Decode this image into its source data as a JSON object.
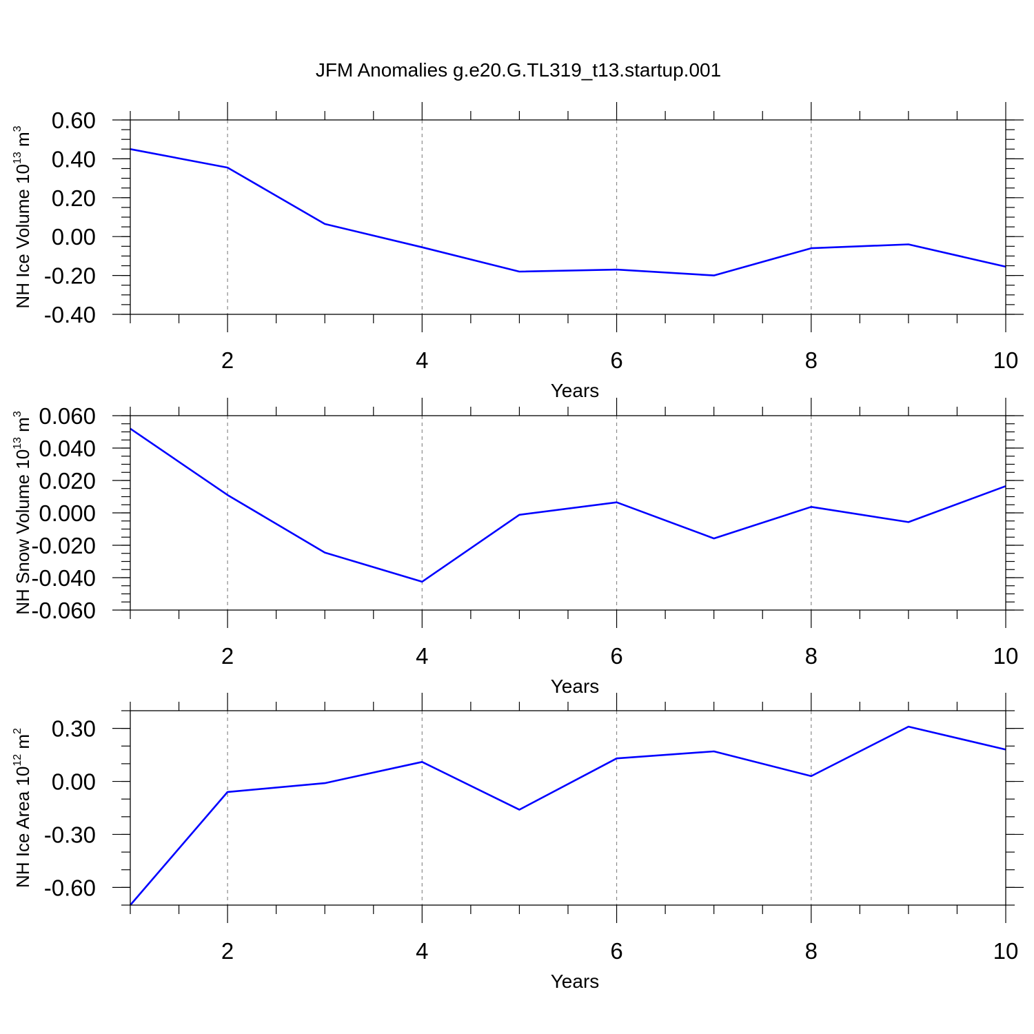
{
  "title": "JFM Anomalies g.e20.G.TL319_t13.startup.001",
  "colors": {
    "line": "#0000ff",
    "grid": "#8a8a8a",
    "axis": "#000000"
  },
  "chart_data": [
    {
      "type": "line",
      "ylabel": {
        "text": "NH Ice Volume 10",
        "sup": "13",
        "unit": " m",
        "unit_sup": "3"
      },
      "xlabel": "Years",
      "x": [
        1,
        2,
        3,
        4,
        5,
        6,
        7,
        8,
        9,
        10
      ],
      "values": [
        0.45,
        0.355,
        0.065,
        -0.055,
        -0.18,
        -0.17,
        -0.2,
        -0.06,
        -0.04,
        -0.155
      ],
      "xlim": [
        1,
        10
      ],
      "ylim": [
        -0.4,
        0.6
      ],
      "xticks": [
        2,
        4,
        6,
        8,
        10
      ],
      "xtick_labels": [
        "2",
        "4",
        "6",
        "8",
        "10"
      ],
      "yticks": [
        -0.4,
        -0.2,
        0.0,
        0.2,
        0.4,
        0.6
      ],
      "ytick_labels": [
        "-0.40",
        "-0.20",
        "0.00",
        "0.20",
        "0.40",
        "0.60"
      ],
      "y_minor_step": 0.05,
      "grid": "x-dashed"
    },
    {
      "type": "line",
      "ylabel": {
        "text": "NH Snow Volume 10",
        "sup": "13",
        "unit": " m",
        "unit_sup": "3"
      },
      "xlabel": "Years",
      "x": [
        1,
        2,
        3,
        4,
        5,
        6,
        7,
        8,
        9,
        10
      ],
      "values": [
        0.052,
        0.011,
        -0.0245,
        -0.0425,
        -0.0012,
        0.0065,
        -0.0158,
        0.0037,
        -0.0057,
        0.0165
      ],
      "xlim": [
        1,
        10
      ],
      "ylim": [
        -0.06,
        0.06
      ],
      "xticks": [
        2,
        4,
        6,
        8,
        10
      ],
      "xtick_labels": [
        "2",
        "4",
        "6",
        "8",
        "10"
      ],
      "yticks": [
        -0.06,
        -0.04,
        -0.02,
        0.0,
        0.02,
        0.04,
        0.06
      ],
      "ytick_labels": [
        "-0.060",
        "-0.040",
        "-0.020",
        "0.000",
        "0.020",
        "0.040",
        "0.060"
      ],
      "y_minor_step": 0.005,
      "grid": "x-dashed"
    },
    {
      "type": "line",
      "ylabel": {
        "text": "NH Ice Area 10",
        "sup": "12",
        "unit": " m",
        "unit_sup": "2"
      },
      "xlabel": "Years",
      "x": [
        1,
        2,
        3,
        4,
        5,
        6,
        7,
        8,
        9,
        10
      ],
      "values": [
        -0.7,
        -0.06,
        -0.01,
        0.11,
        -0.16,
        0.13,
        0.17,
        0.03,
        0.31,
        0.18
      ],
      "xlim": [
        1,
        10
      ],
      "ylim": [
        -0.7,
        0.4
      ],
      "xticks": [
        2,
        4,
        6,
        8,
        10
      ],
      "xtick_labels": [
        "2",
        "4",
        "6",
        "8",
        "10"
      ],
      "yticks": [
        -0.6,
        -0.3,
        0.0,
        0.3
      ],
      "ytick_labels": [
        "-0.60",
        "-0.30",
        "0.00",
        "0.30"
      ],
      "y_minor_step": 0.1,
      "grid": "x-dashed"
    }
  ]
}
